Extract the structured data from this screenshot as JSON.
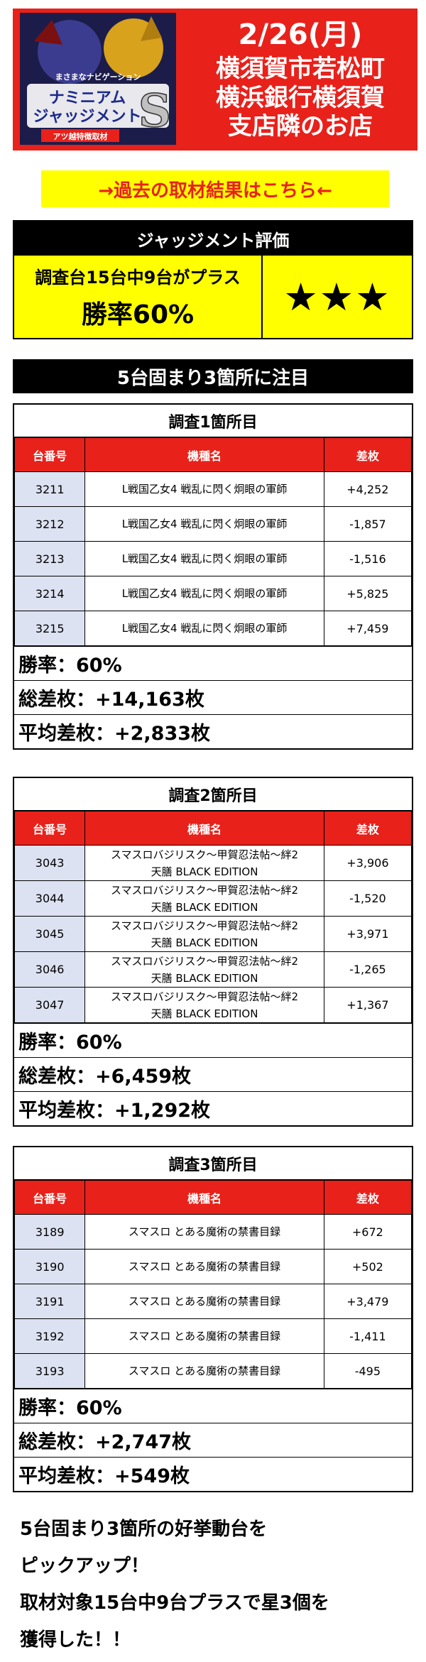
{
  "header": {
    "logo_line1": "ナミニアム",
    "logo_line2": "ジャッジメント",
    "logo_letter": "S",
    "logo_tagline": "まさまなナビゲーション",
    "logo_sub": "アツ越特徴取材",
    "date": "2/26(月)",
    "location_lines": [
      "横須賀市若松町",
      "横浜銀行横須賀",
      "支店隣のお店"
    ]
  },
  "link_banner": "→過去の取材結果はこちら←",
  "evaluation": {
    "title": "ジャッジメント評価",
    "line1": "調査台15台中9台がプラス",
    "line2": "勝率60%",
    "stars": "★★★"
  },
  "focus_title": "5台固まり3箇所に注目",
  "columns": {
    "num": "台番号",
    "machine": "機種名",
    "diff": "差枚"
  },
  "sections": [
    {
      "title": "調査1箇所目",
      "rows": [
        {
          "num": "3211",
          "machine": [
            "L戦国乙女4 戦乱に閃く炯眼の軍師"
          ],
          "diff": "+4,252"
        },
        {
          "num": "3212",
          "machine": [
            "L戦国乙女4 戦乱に閃く炯眼の軍師"
          ],
          "diff": "-1,857"
        },
        {
          "num": "3213",
          "machine": [
            "L戦国乙女4 戦乱に閃く炯眼の軍師"
          ],
          "diff": "-1,516"
        },
        {
          "num": "3214",
          "machine": [
            "L戦国乙女4 戦乱に閃く炯眼の軍師"
          ],
          "diff": "+5,825"
        },
        {
          "num": "3215",
          "machine": [
            "L戦国乙女4 戦乱に閃く炯眼の軍師"
          ],
          "diff": "+7,459"
        }
      ],
      "win_rate": "勝率：60%",
      "total": "総差枚：+14,163枚",
      "average": "平均差枚：+2,833枚"
    },
    {
      "title": "調査2箇所目",
      "rows": [
        {
          "num": "3043",
          "machine": [
            "スマスロバジリスク～甲賀忍法帖～絆2",
            "天膳 BLACK EDITION"
          ],
          "diff": "+3,906"
        },
        {
          "num": "3044",
          "machine": [
            "スマスロバジリスク～甲賀忍法帖～絆2",
            "天膳 BLACK EDITION"
          ],
          "diff": "-1,520"
        },
        {
          "num": "3045",
          "machine": [
            "スマスロバジリスク～甲賀忍法帖～絆2",
            "天膳 BLACK EDITION"
          ],
          "diff": "+3,971"
        },
        {
          "num": "3046",
          "machine": [
            "スマスロバジリスク～甲賀忍法帖～絆2",
            "天膳 BLACK EDITION"
          ],
          "diff": "-1,265"
        },
        {
          "num": "3047",
          "machine": [
            "スマスロバジリスク～甲賀忍法帖～絆2",
            "天膳 BLACK EDITION"
          ],
          "diff": "+1,367"
        }
      ],
      "win_rate": "勝率：60%",
      "total": "総差枚：+6,459枚",
      "average": "平均差枚：+1,292枚"
    },
    {
      "title": "調査3箇所目",
      "rows": [
        {
          "num": "3189",
          "machine": [
            "スマスロ とある魔術の禁書目録"
          ],
          "diff": "+672"
        },
        {
          "num": "3190",
          "machine": [
            "スマスロ とある魔術の禁書目録"
          ],
          "diff": "+502"
        },
        {
          "num": "3191",
          "machine": [
            "スマスロ とある魔術の禁書目録"
          ],
          "diff": "+3,479"
        },
        {
          "num": "3192",
          "machine": [
            "スマスロ とある魔術の禁書目録"
          ],
          "diff": "-1,411"
        },
        {
          "num": "3193",
          "machine": [
            "スマスロ とある魔術の禁書目録"
          ],
          "diff": "-495"
        }
      ],
      "win_rate": "勝率：60%",
      "total": "総差枚：+2,747枚",
      "average": "平均差枚：+549枚"
    }
  ],
  "summary_lines": [
    "5台固まり3箇所の好挙動台を",
    "ピックアップ！",
    "取材対象15台中9台プラスで星3個を",
    "獲得した！！"
  ],
  "colors": {
    "accent_red": "#e8211b",
    "highlight_yellow": "#ffff00",
    "num_cell": "#dce2f1"
  }
}
